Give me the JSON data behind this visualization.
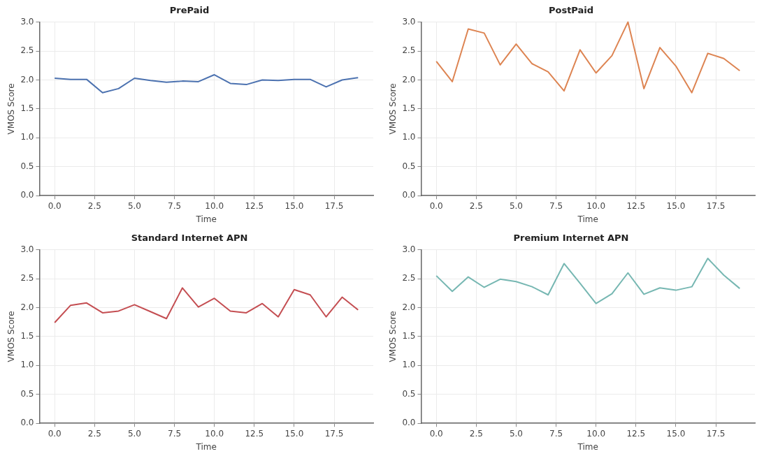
{
  "chart_data": [
    {
      "type": "line",
      "title": "PrePaid",
      "xlabel": "Time",
      "ylabel": "VMOS Score",
      "x": [
        0,
        1,
        2,
        3,
        4,
        5,
        6,
        7,
        8,
        9,
        10,
        11,
        12,
        13,
        14,
        15,
        16,
        17,
        18,
        19
      ],
      "series": [
        {
          "color": "#4c72b0",
          "values": [
            2.03,
            2.01,
            2.01,
            1.78,
            1.85,
            2.03,
            1.99,
            1.96,
            1.98,
            1.97,
            2.09,
            1.94,
            1.92,
            2.0,
            1.99,
            2.01,
            2.01,
            1.88,
            2.0,
            2.04
          ]
        }
      ],
      "xlim": [
        -0.95,
        19.95
      ],
      "xticks": [
        {
          "value": 0,
          "label": "0.0"
        },
        2.5,
        {
          "value": 5,
          "label": "5.0"
        },
        7.5,
        {
          "value": 10,
          "label": "10.0"
        },
        12.5,
        {
          "value": 15,
          "label": "15.0"
        },
        17.5
      ],
      "ylim": [
        0,
        3
      ],
      "yticks": [
        {
          "value": 0,
          "label": "0.0"
        },
        0.5,
        {
          "value": 1,
          "label": "1.0"
        },
        1.5,
        {
          "value": 2,
          "label": "2.0"
        },
        2.5,
        {
          "value": 3,
          "label": "3.0"
        }
      ],
      "grid": true
    },
    {
      "type": "line",
      "title": "PostPaid",
      "xlabel": "Time",
      "ylabel": "VMOS Score",
      "x": [
        0,
        1,
        2,
        3,
        4,
        5,
        6,
        7,
        8,
        9,
        10,
        11,
        12,
        13,
        14,
        15,
        16,
        17,
        18,
        19
      ],
      "series": [
        {
          "color": "#dd8452",
          "values": [
            2.32,
            1.97,
            2.88,
            2.81,
            2.26,
            2.62,
            2.28,
            2.14,
            1.81,
            2.52,
            2.12,
            2.42,
            3.0,
            1.85,
            2.56,
            2.24,
            1.78,
            2.46,
            2.37,
            2.16
          ]
        }
      ],
      "xlim": [
        -0.95,
        19.95
      ],
      "xticks": [
        {
          "value": 0,
          "label": "0.0"
        },
        2.5,
        {
          "value": 5,
          "label": "5.0"
        },
        7.5,
        {
          "value": 10,
          "label": "10.0"
        },
        12.5,
        {
          "value": 15,
          "label": "15.0"
        },
        17.5
      ],
      "ylim": [
        0,
        3
      ],
      "yticks": [
        {
          "value": 0,
          "label": "0.0"
        },
        0.5,
        {
          "value": 1,
          "label": "1.0"
        },
        1.5,
        {
          "value": 2,
          "label": "2.0"
        },
        2.5,
        {
          "value": 3,
          "label": "3.0"
        }
      ],
      "grid": true
    },
    {
      "type": "line",
      "title": "Standard Internet APN",
      "xlabel": "Time",
      "ylabel": "VMOS Score",
      "x": [
        0,
        1,
        2,
        3,
        4,
        5,
        6,
        7,
        8,
        9,
        10,
        11,
        12,
        13,
        14,
        15,
        16,
        17,
        18,
        19
      ],
      "series": [
        {
          "color": "#c44e52",
          "values": [
            1.74,
            2.04,
            2.08,
            1.91,
            1.94,
            2.05,
            1.93,
            1.81,
            2.34,
            2.01,
            2.16,
            1.94,
            1.91,
            2.07,
            1.84,
            2.31,
            2.22,
            1.84,
            2.18,
            1.96
          ]
        }
      ],
      "xlim": [
        -0.95,
        19.95
      ],
      "xticks": [
        {
          "value": 0,
          "label": "0.0"
        },
        2.5,
        {
          "value": 5,
          "label": "5.0"
        },
        7.5,
        {
          "value": 10,
          "label": "10.0"
        },
        12.5,
        {
          "value": 15,
          "label": "15.0"
        },
        17.5
      ],
      "ylim": [
        0,
        3
      ],
      "yticks": [
        {
          "value": 0,
          "label": "0.0"
        },
        0.5,
        {
          "value": 1,
          "label": "1.0"
        },
        1.5,
        {
          "value": 2,
          "label": "2.0"
        },
        2.5,
        {
          "value": 3,
          "label": "3.0"
        }
      ],
      "grid": true
    },
    {
      "type": "line",
      "title": "Premium Internet APN",
      "xlabel": "Time",
      "ylabel": "VMOS Score",
      "x": [
        0,
        1,
        2,
        3,
        4,
        5,
        6,
        7,
        8,
        9,
        10,
        11,
        12,
        13,
        14,
        15,
        16,
        17,
        18,
        19
      ],
      "series": [
        {
          "color": "#76b7b2",
          "values": [
            2.55,
            2.28,
            2.53,
            2.35,
            2.49,
            2.45,
            2.36,
            2.22,
            2.76,
            2.42,
            2.07,
            2.24,
            2.6,
            2.23,
            2.34,
            2.3,
            2.36,
            2.85,
            2.56,
            2.33
          ]
        }
      ],
      "xlim": [
        -0.95,
        19.95
      ],
      "xticks": [
        {
          "value": 0,
          "label": "0.0"
        },
        2.5,
        {
          "value": 5,
          "label": "5.0"
        },
        7.5,
        {
          "value": 10,
          "label": "10.0"
        },
        12.5,
        {
          "value": 15,
          "label": "15.0"
        },
        17.5
      ],
      "ylim": [
        0,
        3
      ],
      "yticks": [
        {
          "value": 0,
          "label": "0.0"
        },
        0.5,
        {
          "value": 1,
          "label": "1.0"
        },
        1.5,
        {
          "value": 2,
          "label": "2.0"
        },
        2.5,
        {
          "value": 3,
          "label": "3.0"
        }
      ],
      "grid": true
    }
  ]
}
